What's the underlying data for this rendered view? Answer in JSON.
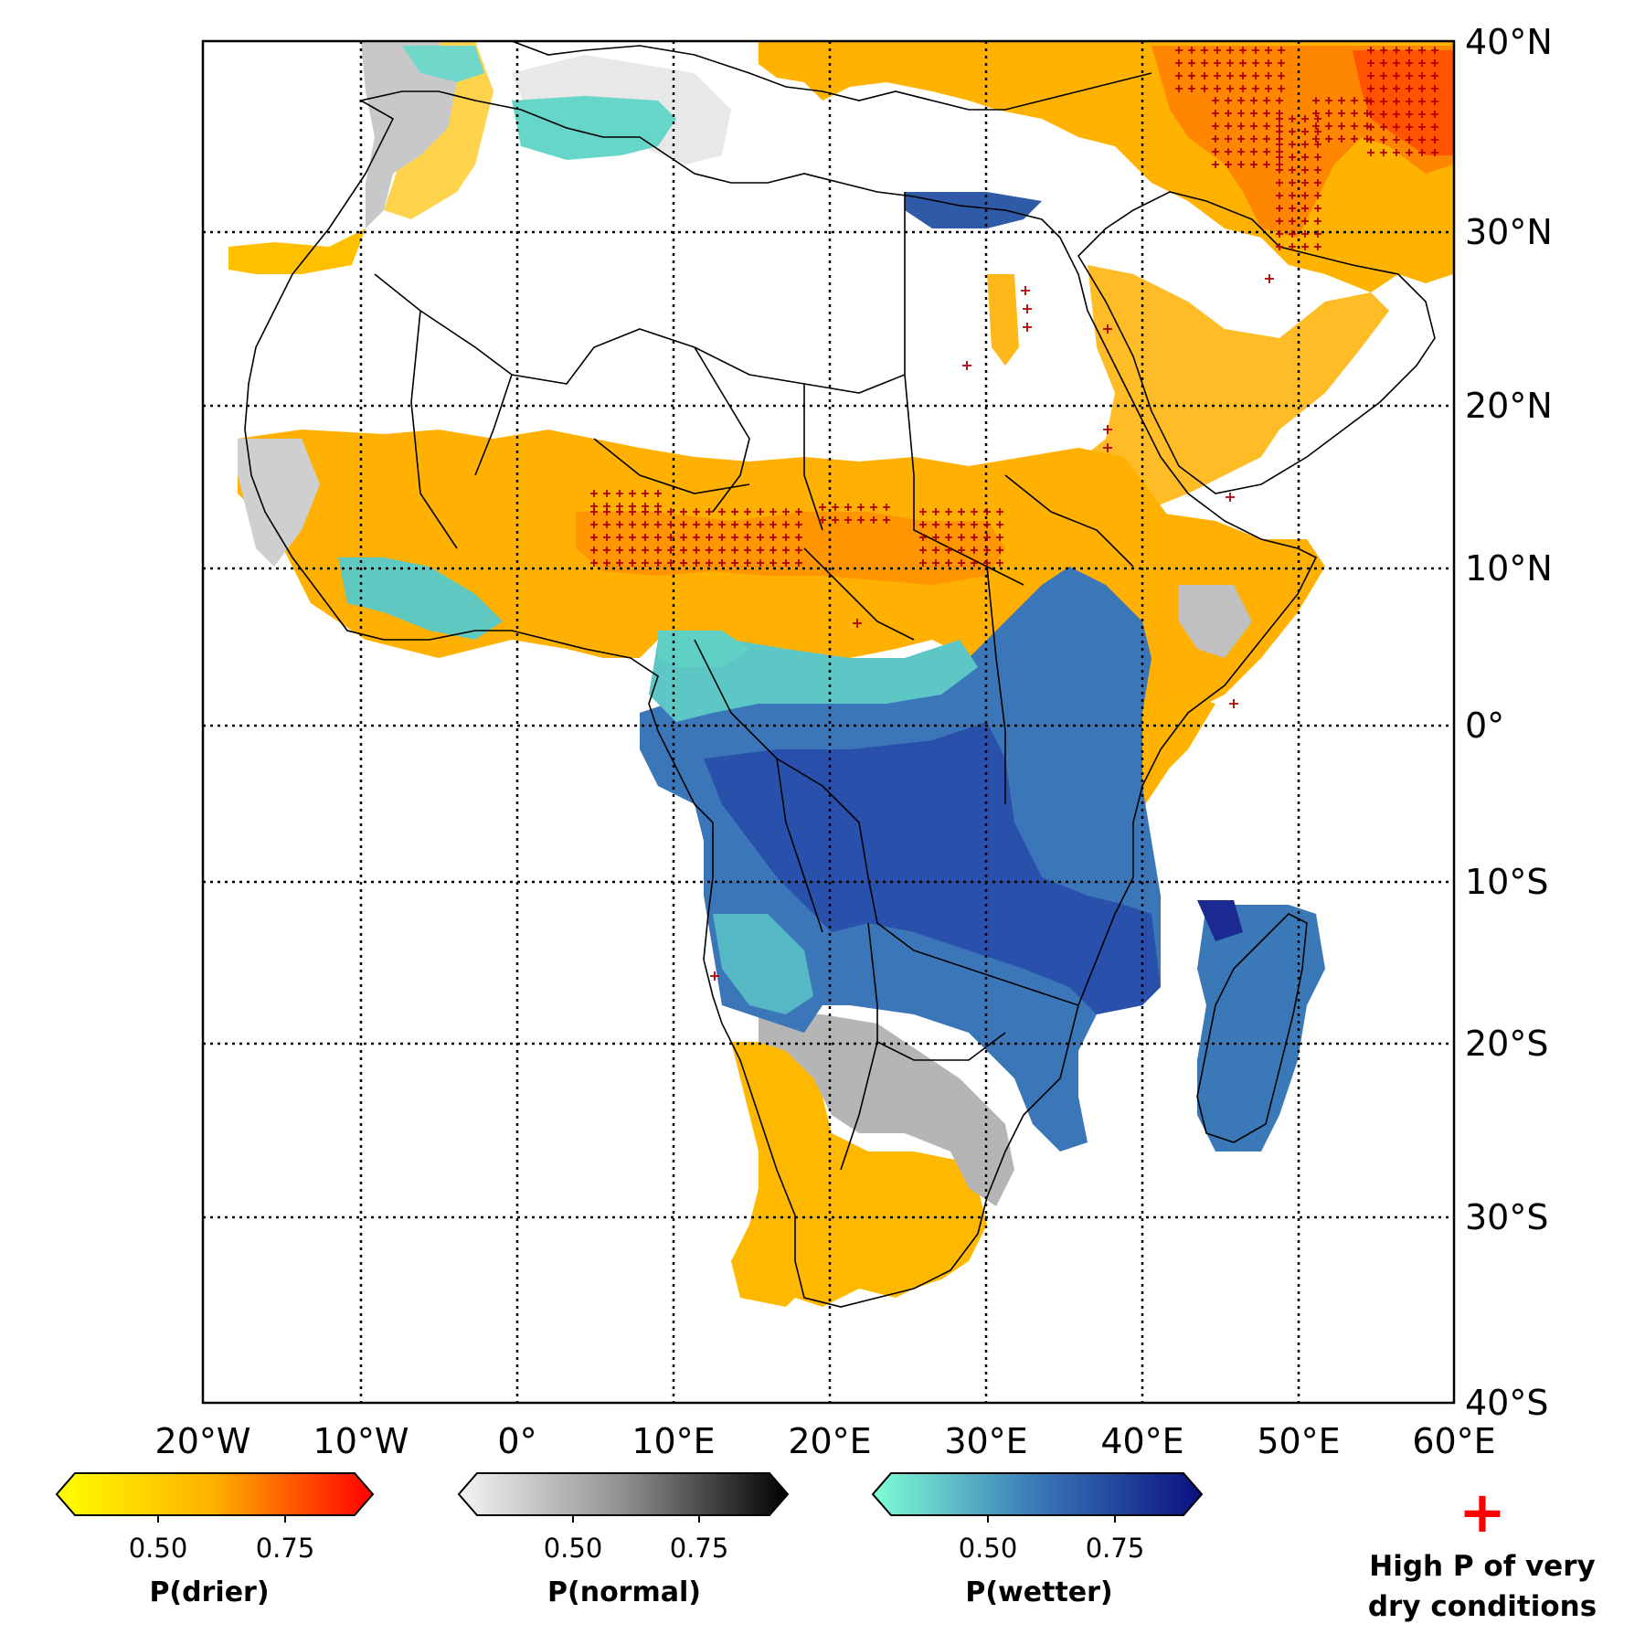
{
  "map": {
    "lat_labels": [
      "40°N",
      "30°N",
      "20°N",
      "10°N",
      "0°",
      "10°S",
      "20°S",
      "30°S",
      "40°S"
    ],
    "lon_labels": [
      "20°W",
      "10°W",
      "0°",
      "10°E",
      "20°E",
      "30°E",
      "40°E",
      "50°E",
      "60°E"
    ],
    "extent": {
      "lon": [
        -20,
        60
      ],
      "lat": [
        -40,
        40
      ]
    },
    "grid": "dotted",
    "colors": {
      "drier": "#ffb300",
      "drier_strong": "#ff5a00",
      "normal": "#c8c8c8",
      "wetter": "#3a74b8",
      "wetter_light": "#66d6c8",
      "wetter_strong": "#1a3aa0",
      "marker": "#ff0000"
    }
  },
  "legend": {
    "drier": {
      "title": "P(drier)",
      "ticks": [
        "0.50",
        "0.75"
      ],
      "colors": [
        "#ffff00",
        "#ffb000",
        "#ff0000"
      ]
    },
    "normal": {
      "title": "P(normal)",
      "ticks": [
        "0.50",
        "0.75"
      ],
      "colors": [
        "#f5f5f5",
        "#909090",
        "#000000"
      ]
    },
    "wetter": {
      "title": "P(wetter)",
      "ticks": [
        "0.50",
        "0.75"
      ],
      "colors": [
        "#7fffd4",
        "#3a78b8",
        "#0a1080"
      ]
    },
    "marker": {
      "symbol": "+",
      "line1": "High P of very",
      "line2": "dry conditions"
    }
  }
}
